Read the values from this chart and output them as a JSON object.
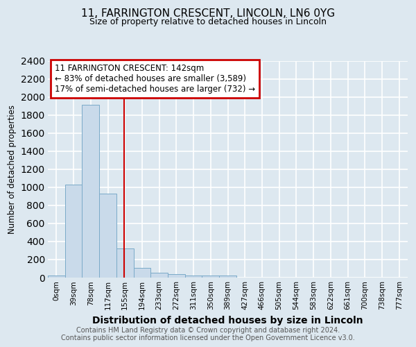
{
  "title_line1": "11, FARRINGTON CRESCENT, LINCOLN, LN6 0YG",
  "title_line2": "Size of property relative to detached houses in Lincoln",
  "xlabel": "Distribution of detached houses by size in Lincoln",
  "ylabel": "Number of detached properties",
  "bin_labels": [
    "0sqm",
    "39sqm",
    "78sqm",
    "117sqm",
    "155sqm",
    "194sqm",
    "233sqm",
    "272sqm",
    "311sqm",
    "350sqm",
    "389sqm",
    "427sqm",
    "466sqm",
    "505sqm",
    "544sqm",
    "583sqm",
    "622sqm",
    "661sqm",
    "700sqm",
    "738sqm",
    "777sqm"
  ],
  "bar_values": [
    20,
    1030,
    1910,
    930,
    320,
    110,
    55,
    35,
    25,
    25,
    20,
    0,
    0,
    0,
    0,
    0,
    0,
    0,
    0,
    0,
    0
  ],
  "bar_color": "#c9daea",
  "bar_edge_color": "#7aaac8",
  "ylim": [
    0,
    2400
  ],
  "yticks": [
    0,
    200,
    400,
    600,
    800,
    1000,
    1200,
    1400,
    1600,
    1800,
    2000,
    2200,
    2400
  ],
  "vline_x_bin": 3.97,
  "vline_color": "#cc0000",
  "annotation_text": "11 FARRINGTON CRESCENT: 142sqm\n← 83% of detached houses are smaller (3,589)\n17% of semi-detached houses are larger (732) →",
  "annotation_box_color": "#ffffff",
  "annotation_box_edge": "#cc0000",
  "footer_text": "Contains HM Land Registry data © Crown copyright and database right 2024.\nContains public sector information licensed under the Open Government Licence v3.0.",
  "background_color": "#dde8f0",
  "plot_bg_color": "#dde8f0",
  "grid_color": "#ffffff"
}
